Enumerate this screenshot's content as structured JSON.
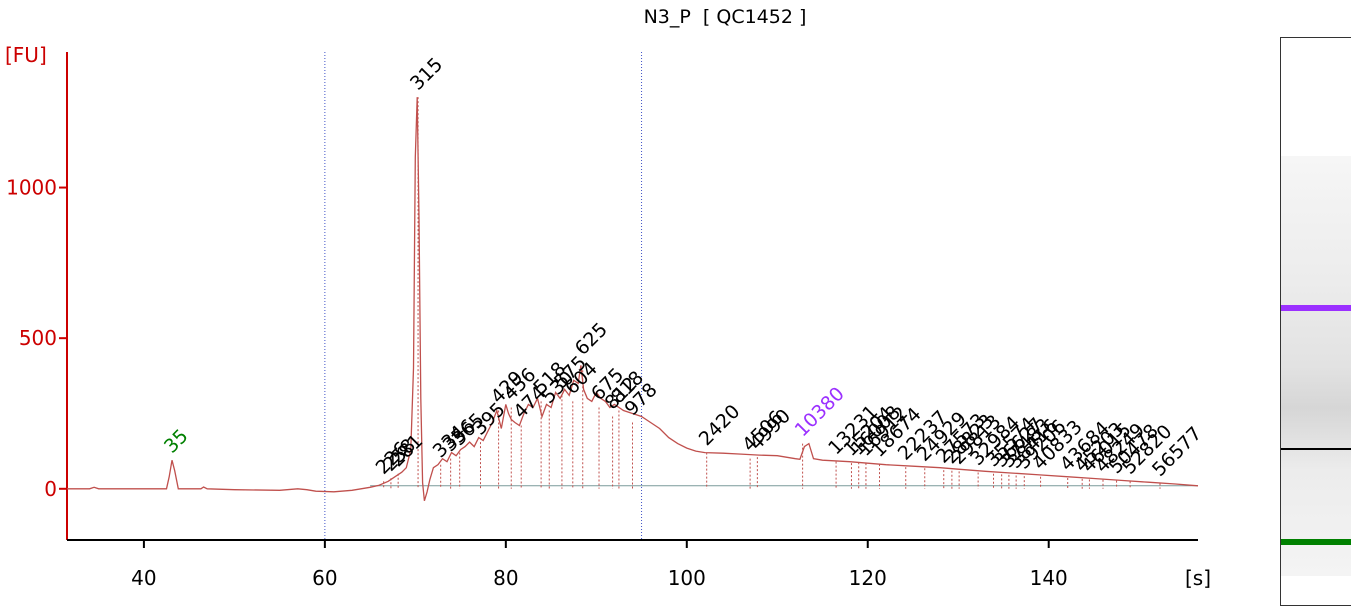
{
  "title": "N3_P  [ QC1452 ]",
  "y_unit": "[FU]",
  "x_unit": "[s]",
  "colors": {
    "trace": "#c0504d",
    "axis": "#cc0000",
    "lower_marker": "#008000",
    "upper_marker": "#9b30ff",
    "grid": "#3f52c8",
    "baseline": "#7a9a9a"
  },
  "chart_data": {
    "type": "line",
    "title": "N3_P  [ QC1452 ]",
    "xlabel": "[s]",
    "ylabel": "[FU]",
    "xlim": [
      31.5,
      156.5
    ],
    "ylim": [
      -170,
      1450
    ],
    "xticks": [
      40,
      60,
      80,
      100,
      120,
      140
    ],
    "yticks": [
      0,
      500,
      1000
    ],
    "vlines": [
      60,
      95
    ],
    "series": [
      {
        "x": [
          31.5,
          34,
          34.5,
          35,
          42.5,
          42.8,
          43.1,
          43.4,
          43.8,
          44.5,
          46.3,
          46.6,
          47,
          50,
          55,
          57,
          58,
          59,
          61,
          63,
          65,
          66,
          67,
          68,
          68.5,
          69,
          69.5,
          69.8,
          70.0,
          70.2,
          70.4,
          70.6,
          70.8,
          71.0,
          71.3,
          71.6,
          72,
          72.5,
          73,
          73.5,
          74,
          74.5,
          75,
          75.5,
          76,
          76.5,
          77,
          77.5,
          78,
          78.5,
          79,
          79.5,
          80,
          80.3,
          80.6,
          81,
          81.5,
          82,
          82.5,
          83,
          83.5,
          84,
          84.5,
          85,
          85.5,
          86,
          86.5,
          87,
          87.5,
          88,
          88.3,
          88.6,
          89,
          89.5,
          90,
          90.5,
          91,
          91.5,
          92,
          93,
          94,
          95,
          96,
          97,
          98,
          99,
          100,
          101,
          102,
          104,
          106,
          108,
          110,
          111,
          112,
          112.5,
          113,
          113.5,
          114,
          115,
          118,
          120,
          122,
          125,
          128,
          130,
          133,
          136,
          139,
          142,
          145,
          148,
          151,
          154,
          156.5
        ],
        "y": [
          0,
          0,
          5,
          0,
          0,
          40,
          95,
          60,
          0,
          0,
          0,
          6,
          0,
          -3,
          -5,
          0,
          -3,
          -8,
          -10,
          -5,
          5,
          12,
          25,
          45,
          55,
          70,
          130,
          400,
          1100,
          1300,
          900,
          300,
          20,
          -40,
          -10,
          30,
          70,
          80,
          100,
          90,
          120,
          110,
          130,
          140,
          155,
          140,
          170,
          160,
          190,
          220,
          260,
          200,
          280,
          250,
          230,
          220,
          210,
          250,
          280,
          270,
          300,
          240,
          280,
          270,
          320,
          300,
          330,
          310,
          360,
          350,
          410,
          330,
          300,
          290,
          320,
          300,
          290,
          270,
          280,
          260,
          250,
          240,
          220,
          200,
          170,
          150,
          135,
          125,
          120,
          118,
          115,
          112,
          110,
          105,
          100,
          98,
          140,
          150,
          100,
          95,
          90,
          85,
          80,
          75,
          70,
          65,
          58,
          52,
          46,
          40,
          34,
          28,
          22,
          16,
          10
        ]
      }
    ],
    "peak_labels": [
      {
        "x": 43.1,
        "y": 95,
        "text": "35",
        "color": "#008000"
      },
      {
        "x": 70.3,
        "y": 1300,
        "text": "315",
        "color": "#000000"
      },
      {
        "x": 66.5,
        "y": 25,
        "text": "226",
        "color": "#000000"
      },
      {
        "x": 67.3,
        "y": 35,
        "text": "258",
        "color": "#000000"
      },
      {
        "x": 68.1,
        "y": 50,
        "text": "281",
        "color": "#000000"
      },
      {
        "x": 72.8,
        "y": 80,
        "text": "334",
        "color": "#000000"
      },
      {
        "x": 73.9,
        "y": 100,
        "text": "356",
        "color": "#000000"
      },
      {
        "x": 74.9,
        "y": 120,
        "text": "365",
        "color": "#000000"
      },
      {
        "x": 77.2,
        "y": 155,
        "text": "395",
        "color": "#000000"
      },
      {
        "x": 79.2,
        "y": 260,
        "text": "429",
        "color": "#000000"
      },
      {
        "x": 80.6,
        "y": 270,
        "text": "456",
        "color": "#000000"
      },
      {
        "x": 81.7,
        "y": 210,
        "text": "474",
        "color": "#000000"
      },
      {
        "x": 83.9,
        "y": 290,
        "text": "518",
        "color": "#000000"
      },
      {
        "x": 84.8,
        "y": 260,
        "text": "530",
        "color": "#000000"
      },
      {
        "x": 86.2,
        "y": 310,
        "text": "575",
        "color": "#000000"
      },
      {
        "x": 87.4,
        "y": 290,
        "text": "604",
        "color": "#000000"
      },
      {
        "x": 88.5,
        "y": 420,
        "text": "625",
        "color": "#000000"
      },
      {
        "x": 90.3,
        "y": 270,
        "text": "675",
        "color": "#000000"
      },
      {
        "x": 91.8,
        "y": 240,
        "text": "812",
        "color": "#000000"
      },
      {
        "x": 92.5,
        "y": 260,
        "text": "818",
        "color": "#000000"
      },
      {
        "x": 94.0,
        "y": 220,
        "text": "978",
        "color": "#000000"
      },
      {
        "x": 102.2,
        "y": 120,
        "text": "2420",
        "color": "#000000"
      },
      {
        "x": 107.0,
        "y": 100,
        "text": "4506",
        "color": "#000000"
      },
      {
        "x": 107.8,
        "y": 105,
        "text": "4990",
        "color": "#000000"
      },
      {
        "x": 112.8,
        "y": 150,
        "text": "10380",
        "color": "#9b30ff"
      },
      {
        "x": 116.5,
        "y": 90,
        "text": "13231",
        "color": "#000000"
      },
      {
        "x": 118.2,
        "y": 85,
        "text": "15204",
        "color": "#000000"
      },
      {
        "x": 119.0,
        "y": 88,
        "text": "16008",
        "color": "#000000"
      },
      {
        "x": 119.8,
        "y": 85,
        "text": "16912",
        "color": "#000000"
      },
      {
        "x": 121.3,
        "y": 82,
        "text": "18674",
        "color": "#000000"
      },
      {
        "x": 124.2,
        "y": 72,
        "text": "22237",
        "color": "#000000"
      },
      {
        "x": 126.3,
        "y": 68,
        "text": "24929",
        "color": "#000000"
      },
      {
        "x": 128.4,
        "y": 62,
        "text": "27573",
        "color": "#000000"
      },
      {
        "x": 129.3,
        "y": 60,
        "text": "28823",
        "color": "#000000"
      },
      {
        "x": 130.1,
        "y": 58,
        "text": "29813",
        "color": "#000000"
      },
      {
        "x": 132.2,
        "y": 54,
        "text": "32984",
        "color": "#000000"
      },
      {
        "x": 133.9,
        "y": 50,
        "text": "35574",
        "color": "#000000"
      },
      {
        "x": 134.8,
        "y": 48,
        "text": "36627",
        "color": "#000000"
      },
      {
        "x": 135.6,
        "y": 46,
        "text": "37483",
        "color": "#000000"
      },
      {
        "x": 136.4,
        "y": 44,
        "text": "38416",
        "color": "#000000"
      },
      {
        "x": 137.3,
        "y": 42,
        "text": "39206",
        "color": "#000000"
      },
      {
        "x": 139.1,
        "y": 40,
        "text": "40833",
        "color": "#000000"
      },
      {
        "x": 142.1,
        "y": 36,
        "text": "43684",
        "color": "#000000"
      },
      {
        "x": 143.7,
        "y": 33,
        "text": "45203",
        "color": "#000000"
      },
      {
        "x": 144.5,
        "y": 31,
        "text": "46015",
        "color": "#000000"
      },
      {
        "x": 146.0,
        "y": 30,
        "text": "48249",
        "color": "#000000"
      },
      {
        "x": 147.5,
        "y": 27,
        "text": "50478",
        "color": "#000000"
      },
      {
        "x": 149.0,
        "y": 25,
        "text": "52820",
        "color": "#000000"
      },
      {
        "x": 152.3,
        "y": 18,
        "text": "56577",
        "color": "#000000"
      }
    ],
    "grid": false,
    "legend": "none"
  },
  "gel": {
    "bands": [
      {
        "position": 0.47,
        "color": "#9b30ff",
        "label": "upper-marker"
      },
      {
        "position": 0.72,
        "color": "#000000",
        "label": "main-band"
      },
      {
        "position": 0.88,
        "color": "#008000",
        "label": "lower-marker"
      }
    ]
  }
}
